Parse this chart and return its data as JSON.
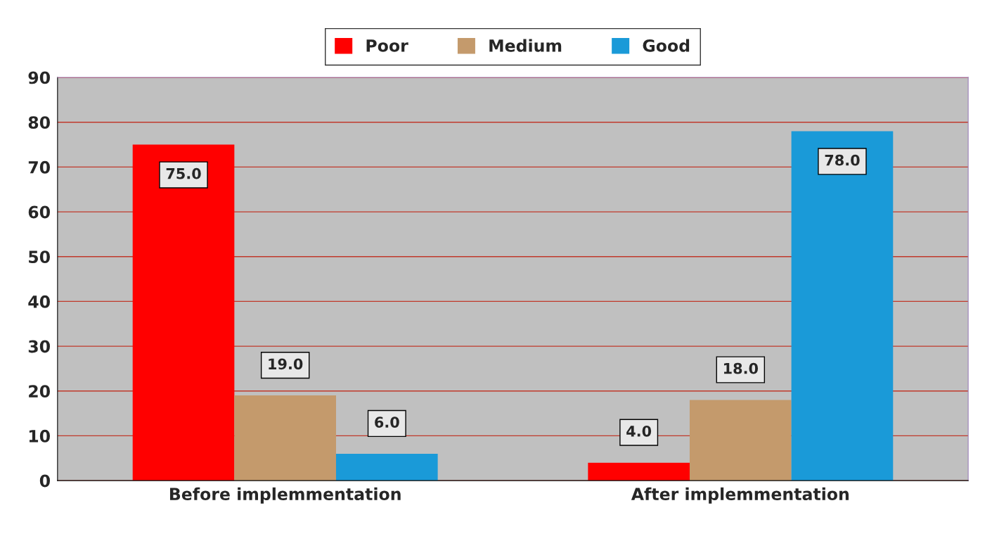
{
  "chart_data": {
    "type": "bar",
    "categories": [
      "Before implemmentation",
      "After implemmentation"
    ],
    "series": [
      {
        "name": "Poor",
        "color": "#ff0000",
        "values": [
          75,
          4
        ],
        "value_labels": [
          "75.0",
          "4.0"
        ]
      },
      {
        "name": "Medium",
        "color": "#c49a6c",
        "values": [
          19,
          18
        ],
        "value_labels": [
          "19.0",
          "18.0"
        ]
      },
      {
        "name": "Good",
        "color": "#1a9ad8",
        "values": [
          6,
          78
        ],
        "value_labels": [
          "6.0",
          "78.0"
        ]
      }
    ],
    "ylim": [
      0,
      90
    ],
    "yticks": [
      0,
      10,
      20,
      30,
      40,
      50,
      60,
      70,
      80,
      90
    ],
    "grid": "y",
    "legend": "top"
  }
}
